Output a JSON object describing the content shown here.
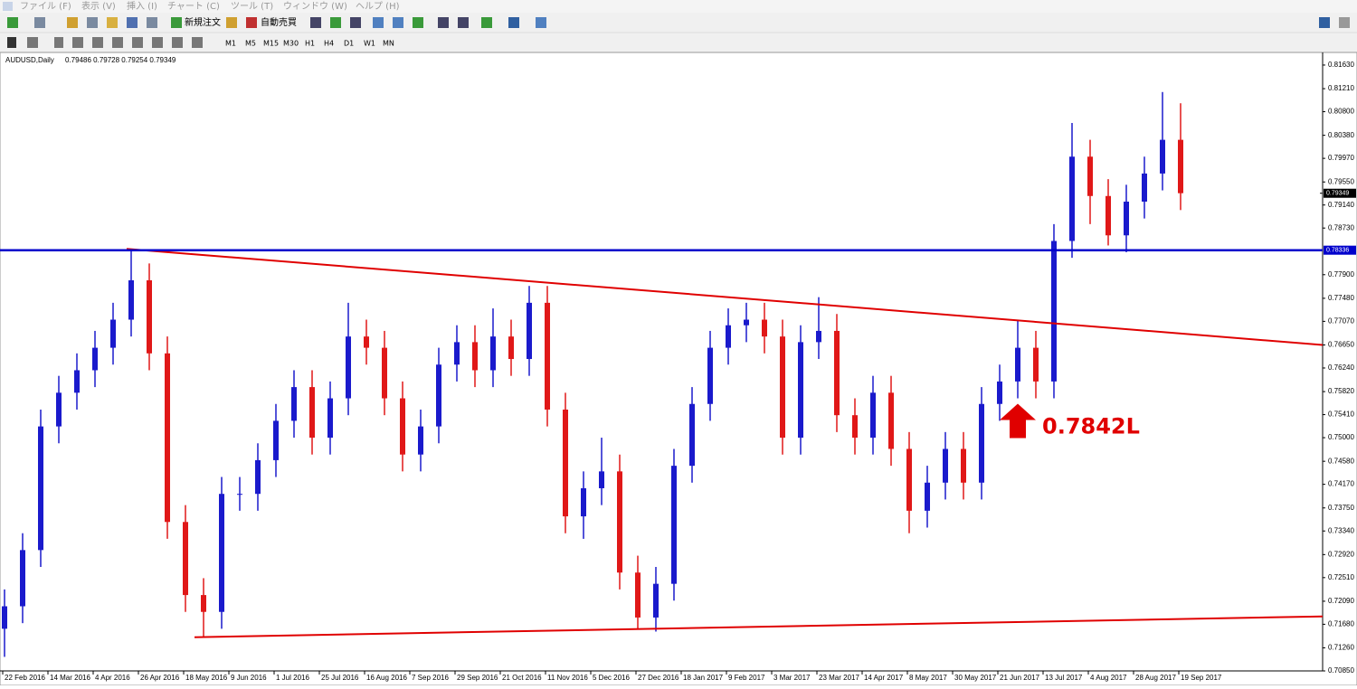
{
  "menu": [
    "ファイル (F)",
    "表示 (V)",
    "挿入 (I)",
    "チャート (C)",
    "ツール (T)",
    "ウィンドウ (W)",
    "ヘルプ (H)"
  ],
  "toolbar": {
    "new_order": "新規注文",
    "auto_trading": "自動売買"
  },
  "timeframes": [
    "M1",
    "M5",
    "M15",
    "M30",
    "H1",
    "H4",
    "D1",
    "W1",
    "MN"
  ],
  "chart_data": {
    "type": "candlestick",
    "title": "AUDUSD,Daily",
    "ohlc_header": "0.79486 0.79728 0.79254 0.79349",
    "up_color": "#1a1acc",
    "down_color": "#e01818",
    "open": [
      0.716,
      0.72,
      0.73,
      0.752,
      0.758,
      0.762,
      0.766,
      0.771,
      0.778,
      0.765,
      0.735,
      0.722,
      0.719,
      0.74,
      0.74,
      0.746,
      0.753,
      0.759,
      0.75,
      0.757,
      0.768,
      0.766,
      0.757,
      0.747,
      0.752,
      0.763,
      0.767,
      0.762,
      0.768,
      0.764,
      0.774,
      0.755,
      0.736,
      0.741,
      0.744,
      0.726,
      0.718,
      0.724,
      0.745,
      0.756,
      0.766,
      0.77,
      0.771,
      0.768,
      0.75,
      0.767,
      0.769,
      0.754,
      0.75,
      0.758,
      0.748,
      0.737,
      0.742,
      0.748,
      0.742,
      0.756,
      0.76,
      0.766,
      0.76,
      0.785,
      0.8,
      0.793,
      0.786,
      0.792,
      0.797,
      0.803
    ],
    "high": [
      0.723,
      0.733,
      0.755,
      0.761,
      0.765,
      0.769,
      0.774,
      0.7835,
      0.781,
      0.768,
      0.738,
      0.725,
      0.743,
      0.743,
      0.749,
      0.756,
      0.762,
      0.762,
      0.76,
      0.774,
      0.771,
      0.769,
      0.76,
      0.755,
      0.766,
      0.77,
      0.77,
      0.773,
      0.771,
      0.777,
      0.777,
      0.758,
      0.744,
      0.75,
      0.747,
      0.729,
      0.727,
      0.748,
      0.759,
      0.769,
      0.773,
      0.774,
      0.774,
      0.771,
      0.77,
      0.775,
      0.772,
      0.757,
      0.761,
      0.761,
      0.751,
      0.745,
      0.751,
      0.751,
      0.759,
      0.763,
      0.771,
      0.769,
      0.788,
      0.806,
      0.803,
      0.796,
      0.795,
      0.8,
      0.8115,
      0.8095
    ],
    "low": [
      0.711,
      0.717,
      0.727,
      0.749,
      0.755,
      0.759,
      0.763,
      0.768,
      0.762,
      0.732,
      0.719,
      0.7145,
      0.716,
      0.737,
      0.737,
      0.743,
      0.75,
      0.747,
      0.747,
      0.754,
      0.763,
      0.754,
      0.744,
      0.744,
      0.749,
      0.76,
      0.759,
      0.759,
      0.761,
      0.761,
      0.752,
      0.733,
      0.732,
      0.738,
      0.723,
      0.716,
      0.7155,
      0.721,
      0.742,
      0.753,
      0.763,
      0.767,
      0.765,
      0.747,
      0.747,
      0.764,
      0.751,
      0.747,
      0.747,
      0.745,
      0.733,
      0.734,
      0.739,
      0.739,
      0.739,
      0.753,
      0.757,
      0.757,
      0.757,
      0.782,
      0.788,
      0.7842,
      0.783,
      0.789,
      0.794,
      0.7905
    ],
    "close": [
      0.72,
      0.73,
      0.752,
      0.758,
      0.762,
      0.766,
      0.771,
      0.778,
      0.765,
      0.735,
      0.722,
      0.719,
      0.74,
      0.74,
      0.746,
      0.753,
      0.759,
      0.75,
      0.757,
      0.768,
      0.766,
      0.757,
      0.747,
      0.752,
      0.763,
      0.767,
      0.762,
      0.768,
      0.764,
      0.774,
      0.755,
      0.736,
      0.741,
      0.744,
      0.726,
      0.718,
      0.724,
      0.745,
      0.756,
      0.766,
      0.77,
      0.771,
      0.768,
      0.75,
      0.767,
      0.769,
      0.754,
      0.75,
      0.758,
      0.748,
      0.737,
      0.742,
      0.748,
      0.742,
      0.756,
      0.76,
      0.766,
      0.76,
      0.785,
      0.8,
      0.793,
      0.786,
      0.792,
      0.797,
      0.803,
      0.7935
    ],
    "xlim": [
      -0.25,
      72.85
    ],
    "xticks": [
      {
        "value": -0.1,
        "label": "22 Feb 2016"
      },
      {
        "value": 2.4,
        "label": "14 Mar 2016"
      },
      {
        "value": 4.9,
        "label": "4 Apr 2016"
      },
      {
        "value": 7.4,
        "label": "26 Apr 2016"
      },
      {
        "value": 9.9,
        "label": "18 May 2016"
      },
      {
        "value": 12.4,
        "label": "9 Jun 2016"
      },
      {
        "value": 14.9,
        "label": "1 Jul 2016"
      },
      {
        "value": 17.4,
        "label": "25 Jul 2016"
      },
      {
        "value": 19.9,
        "label": "16 Aug 2016"
      },
      {
        "value": 22.4,
        "label": "7 Sep 2016"
      },
      {
        "value": 24.9,
        "label": "29 Sep 2016"
      },
      {
        "value": 27.4,
        "label": "21 Oct 2016"
      },
      {
        "value": 29.9,
        "label": "11 Nov 2016"
      },
      {
        "value": 32.4,
        "label": "5 Dec 2016"
      },
      {
        "value": 34.9,
        "label": "27 Dec 2016"
      },
      {
        "value": 37.4,
        "label": "18 Jan 2017"
      },
      {
        "value": 39.9,
        "label": "9 Feb 2017"
      },
      {
        "value": 42.4,
        "label": "3 Mar 2017"
      },
      {
        "value": 44.9,
        "label": "23 Mar 2017"
      },
      {
        "value": 47.4,
        "label": "14 Apr 2017"
      },
      {
        "value": 49.9,
        "label": "8 May 2017"
      },
      {
        "value": 52.4,
        "label": "30 May 2017"
      },
      {
        "value": 54.9,
        "label": "21 Jun 2017"
      },
      {
        "value": 57.4,
        "label": "13 Jul 2017"
      },
      {
        "value": 59.9,
        "label": "4 Aug 2017"
      },
      {
        "value": 62.4,
        "label": "28 Aug 2017"
      },
      {
        "value": 64.9,
        "label": "19 Sep 2017"
      }
    ],
    "ylim": [
      0.7085,
      0.8179
    ],
    "yticks": [
      {
        "value": 0.8163,
        "label": "0.81630"
      },
      {
        "value": 0.8121,
        "label": "0.81210"
      },
      {
        "value": 0.808,
        "label": "0.80800"
      },
      {
        "value": 0.8038,
        "label": "0.80380"
      },
      {
        "value": 0.7997,
        "label": "0.79970"
      },
      {
        "value": 0.7955,
        "label": "0.79550"
      },
      {
        "value": 0.7914,
        "label": "0.79140"
      },
      {
        "value": 0.7873,
        "label": "0.78730"
      },
      {
        "value": 0.779,
        "label": "0.77900"
      },
      {
        "value": 0.7748,
        "label": "0.77480"
      },
      {
        "value": 0.7707,
        "label": "0.77070"
      },
      {
        "value": 0.7665,
        "label": "0.76650"
      },
      {
        "value": 0.7624,
        "label": "0.76240"
      },
      {
        "value": 0.7582,
        "label": "0.75820"
      },
      {
        "value": 0.7541,
        "label": "0.75410"
      },
      {
        "value": 0.75,
        "label": "0.75000"
      },
      {
        "value": 0.7458,
        "label": "0.74580"
      },
      {
        "value": 0.7417,
        "label": "0.74170"
      },
      {
        "value": 0.7375,
        "label": "0.73750"
      },
      {
        "value": 0.7334,
        "label": "0.73340"
      },
      {
        "value": 0.7292,
        "label": "0.72920"
      },
      {
        "value": 0.7251,
        "label": "0.72510"
      },
      {
        "value": 0.7209,
        "label": "0.72090"
      },
      {
        "value": 0.7168,
        "label": "0.71680"
      },
      {
        "value": 0.7126,
        "label": "0.71260"
      },
      {
        "value": 0.7085,
        "label": "0.70850"
      }
    ],
    "hline": {
      "value": 0.78336,
      "label": "0.78336",
      "color": "#0000cc"
    },
    "last_price": {
      "value": 0.79349,
      "label": "0.79349"
    },
    "trendlines": [
      {
        "color": "#e00000",
        "x": [
          6.75,
          72.85
        ],
        "y": [
          0.7836,
          0.7665
        ]
      },
      {
        "color": "#e00000",
        "x": [
          10.5,
          72.85
        ],
        "y": [
          0.7145,
          0.7182
        ]
      }
    ],
    "annotation": {
      "text": "0.7842L",
      "color": "#e00000"
    }
  }
}
